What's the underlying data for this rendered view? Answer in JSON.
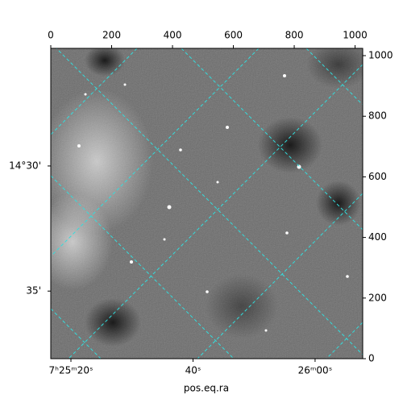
{
  "chart_data": {
    "type": "image",
    "xlabel": "pos.eq.ra",
    "xlim": [
      0,
      1025
    ],
    "xticks": [
      0,
      200,
      400,
      600,
      800,
      1000
    ],
    "ylim": [
      0,
      1024
    ],
    "yticks": [
      0,
      200,
      400,
      600,
      800,
      1000
    ],
    "ra_lim": [
      16.7,
      67.8
    ],
    "ra_ticks": [
      {
        "value": 20,
        "label": "7ʰ25ᵐ20ˢ"
      },
      {
        "value": 40,
        "label": "40ˢ"
      },
      {
        "value": 60,
        "label": "26ᵐ00ˢ"
      }
    ],
    "dec_lim": [
      37.7,
      25.3
    ],
    "dec_ticks": [
      {
        "value": 30,
        "label": "14°30'"
      },
      {
        "value": 35,
        "label": "35'"
      }
    ],
    "grid_color": "#33dddd"
  }
}
